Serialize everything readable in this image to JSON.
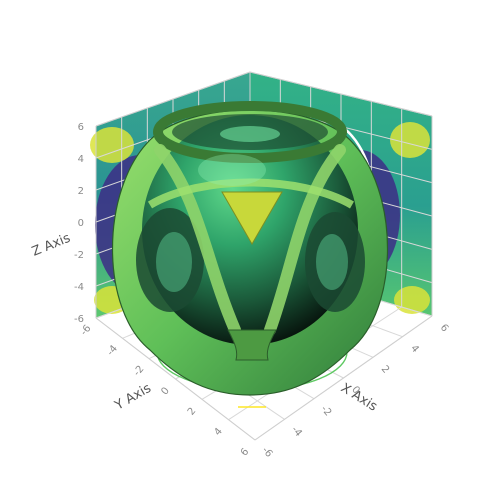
{
  "chart_data": {
    "type": "surface3d",
    "title": "",
    "surface": {
      "name": "",
      "colorscale": [
        "#440154",
        "#3b528b",
        "#21918c",
        "#5ec962",
        "#fde725"
      ],
      "body_color": "#4fbf6f"
    },
    "projections": {
      "back_walls": "filled-contours",
      "floor": "contour-lines"
    },
    "axes": {
      "x": {
        "title": "X Axis",
        "range": [
          -6,
          6
        ],
        "ticks": [
          -6,
          -4,
          -2,
          0,
          2,
          4,
          6
        ],
        "tick_labels": [
          "-6",
          "-4",
          "-2",
          "0",
          "2",
          "4",
          "6"
        ]
      },
      "y": {
        "title": "Y Axis",
        "range": [
          -6,
          6
        ],
        "ticks": [
          -6,
          -4,
          -2,
          0,
          2,
          4,
          6
        ],
        "tick_labels": [
          "-6",
          "-4",
          "-2",
          "0",
          "2",
          "4",
          "6"
        ]
      },
      "z": {
        "title": "Z Axis",
        "range": [
          -6,
          6
        ],
        "ticks": [
          -6,
          -4,
          -2,
          0,
          2,
          4,
          6
        ],
        "tick_labels": [
          "-6",
          "-4",
          "-2",
          "0",
          "2",
          "4",
          "6"
        ]
      }
    },
    "grid": true,
    "legend": "none"
  }
}
